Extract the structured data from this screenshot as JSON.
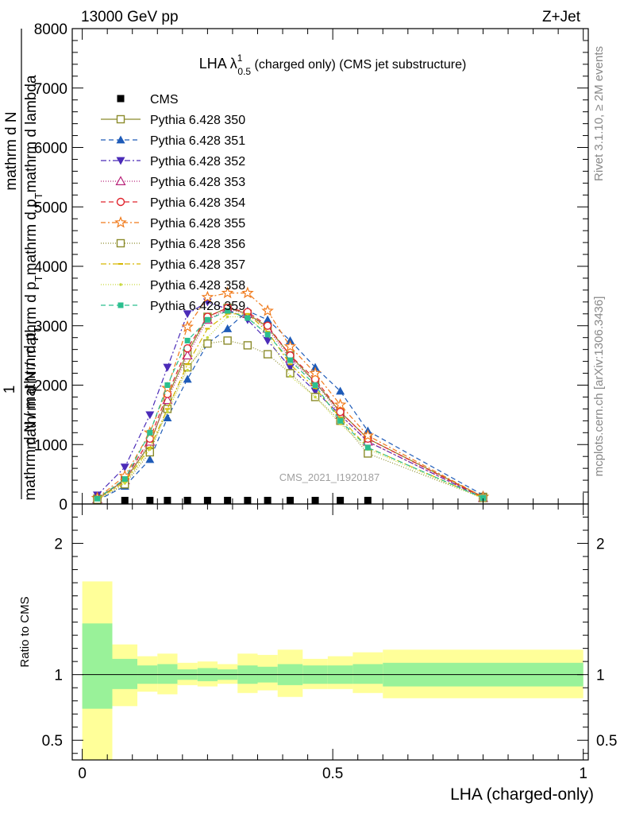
{
  "header": {
    "left": "13000 GeV pp",
    "right": "Z+Jet"
  },
  "side_texts": {
    "rivet": "Rivet 3.1.10, ≥ 2M events",
    "mcplots": "mcplots.cern.ch [arXiv:1306.3436]"
  },
  "chart_data": [
    {
      "type": "line",
      "title_main": "LHA λ",
      "title_sup": "1",
      "title_sub": "0.5",
      "title_rest": " (charged only) (CMS jet substructure)",
      "watermark": "CMS_2021_I1920187",
      "ylabel_parts": [
        "1",
        "mathrm d N",
        "mathrm d N / mathrm d p",
        "T",
        "mathrm d p",
        "T",
        "mathrm d lambda"
      ],
      "ylim": [
        0,
        8000
      ],
      "xlim": [
        -0.02,
        1.01
      ],
      "y_ticks": [
        0,
        1000,
        2000,
        3000,
        4000,
        5000,
        6000,
        7000,
        8000
      ],
      "y_tick_labels": [
        "0",
        "1000",
        "2000",
        "3000",
        "4000",
        "5000",
        "6000",
        "7000",
        "8000"
      ],
      "x": [
        0.03,
        0.085,
        0.135,
        0.17,
        0.21,
        0.25,
        0.29,
        0.33,
        0.37,
        0.415,
        0.465,
        0.515,
        0.57,
        0.8
      ],
      "series": [
        {
          "name": "CMS",
          "color": "#000000",
          "dash": "",
          "marker": "square-filled",
          "values": [
            0,
            0,
            0,
            0,
            0,
            0,
            0,
            0,
            0,
            0,
            0,
            0,
            0,
            0
          ]
        },
        {
          "name": "Pythia 6.428 350",
          "color": "#8b8b2b",
          "dash": "",
          "marker": "square-open",
          "values": [
            90,
            400,
            1000,
            1800,
            2550,
            3150,
            3300,
            3200,
            2980,
            2500,
            2050,
            1550,
            1100,
            120
          ]
        },
        {
          "name": "Pythia 6.428 351",
          "color": "#1e5bb8",
          "dash": "6,4",
          "marker": "triangle-up-filled",
          "values": [
            60,
            300,
            750,
            1450,
            2100,
            2700,
            2950,
            3250,
            3100,
            2750,
            2300,
            1900,
            1230,
            150
          ]
        },
        {
          "name": "Pythia 6.428 352",
          "color": "#4b2bb8",
          "dash": "7,3,2,3",
          "marker": "triangle-down-filled",
          "values": [
            150,
            620,
            1500,
            2300,
            3200,
            3400,
            3280,
            3100,
            2750,
            2300,
            1900,
            1500,
            1050,
            100
          ]
        },
        {
          "name": "Pythia 6.428 353",
          "color": "#b8237a",
          "dash": "1,2",
          "marker": "triangle-up-open",
          "values": [
            80,
            400,
            1050,
            1750,
            2500,
            3100,
            3280,
            3200,
            2950,
            2450,
            2050,
            1500,
            1050,
            100
          ]
        },
        {
          "name": "Pythia 6.428 354",
          "color": "#e0242d",
          "dash": "6,4",
          "marker": "circle-open",
          "values": [
            90,
            420,
            1100,
            1850,
            2620,
            3150,
            3300,
            3230,
            3000,
            2500,
            2100,
            1550,
            1100,
            110
          ]
        },
        {
          "name": "Pythia 6.428 355",
          "color": "#f07a1b",
          "dash": "6,3,2,3",
          "marker": "star-open",
          "values": [
            100,
            470,
            1200,
            1950,
            2980,
            3480,
            3550,
            3550,
            3250,
            2650,
            2200,
            1670,
            1150,
            120
          ]
        },
        {
          "name": "Pythia 6.428 356",
          "color": "#8b8b2b",
          "dash": "1,2",
          "marker": "square-open",
          "values": [
            70,
            330,
            870,
            1600,
            2300,
            2700,
            2750,
            2670,
            2520,
            2200,
            1800,
            1400,
            850,
            100
          ]
        },
        {
          "name": "Pythia 6.428 357",
          "color": "#d6b800",
          "dash": "7,3,2,3",
          "marker": "dash",
          "values": [
            80,
            370,
            950,
            1600,
            2350,
            2950,
            3200,
            3200,
            2900,
            2350,
            1950,
            1450,
            950,
            100
          ]
        },
        {
          "name": "Pythia 6.428 358",
          "color": "#c8d83c",
          "dash": "1,2",
          "marker": "dot",
          "values": [
            80,
            350,
            920,
            1550,
            2250,
            2800,
            3150,
            3150,
            2850,
            2150,
            1800,
            1350,
            920,
            90
          ]
        },
        {
          "name": "Pythia 6.428 359",
          "color": "#2bbf8f",
          "dash": "6,4",
          "marker": "square-filled-small",
          "values": [
            90,
            420,
            1200,
            2000,
            2750,
            3100,
            3250,
            3130,
            2850,
            2420,
            2000,
            1400,
            950,
            100
          ]
        }
      ]
    },
    {
      "type": "area",
      "ylabel": "Ratio to CMS",
      "xlabel": "LHA (charged-only)",
      "ylim": [
        0.35,
        2.3
      ],
      "y_ticks": [
        0.5,
        1,
        2
      ],
      "y_tick_labels": [
        "0.5",
        "1",
        "2"
      ],
      "x_ticks": [
        0,
        0.5,
        1
      ],
      "x_tick_labels": [
        "0",
        "0.5",
        "1"
      ],
      "bin_edges": [
        0,
        0.06,
        0.11,
        0.15,
        0.19,
        0.23,
        0.27,
        0.31,
        0.35,
        0.39,
        0.44,
        0.49,
        0.54,
        0.6,
        1.0
      ],
      "band_inner_color": "#99f299",
      "band_outer_color": "#ffff99",
      "inner_lo": [
        0.74,
        0.89,
        0.93,
        0.93,
        0.96,
        0.95,
        0.96,
        0.93,
        0.94,
        0.92,
        0.93,
        0.93,
        0.93,
        0.91
      ],
      "inner_hi": [
        1.39,
        1.12,
        1.07,
        1.08,
        1.04,
        1.05,
        1.04,
        1.07,
        1.06,
        1.08,
        1.07,
        1.07,
        1.08,
        1.09
      ],
      "outer_lo": [
        0.35,
        0.76,
        0.87,
        0.85,
        0.92,
        0.91,
        0.93,
        0.86,
        0.88,
        0.83,
        0.89,
        0.89,
        0.86,
        0.82
      ],
      "outer_hi": [
        1.71,
        1.23,
        1.14,
        1.16,
        1.09,
        1.1,
        1.08,
        1.16,
        1.15,
        1.19,
        1.12,
        1.14,
        1.17,
        1.19
      ]
    }
  ]
}
